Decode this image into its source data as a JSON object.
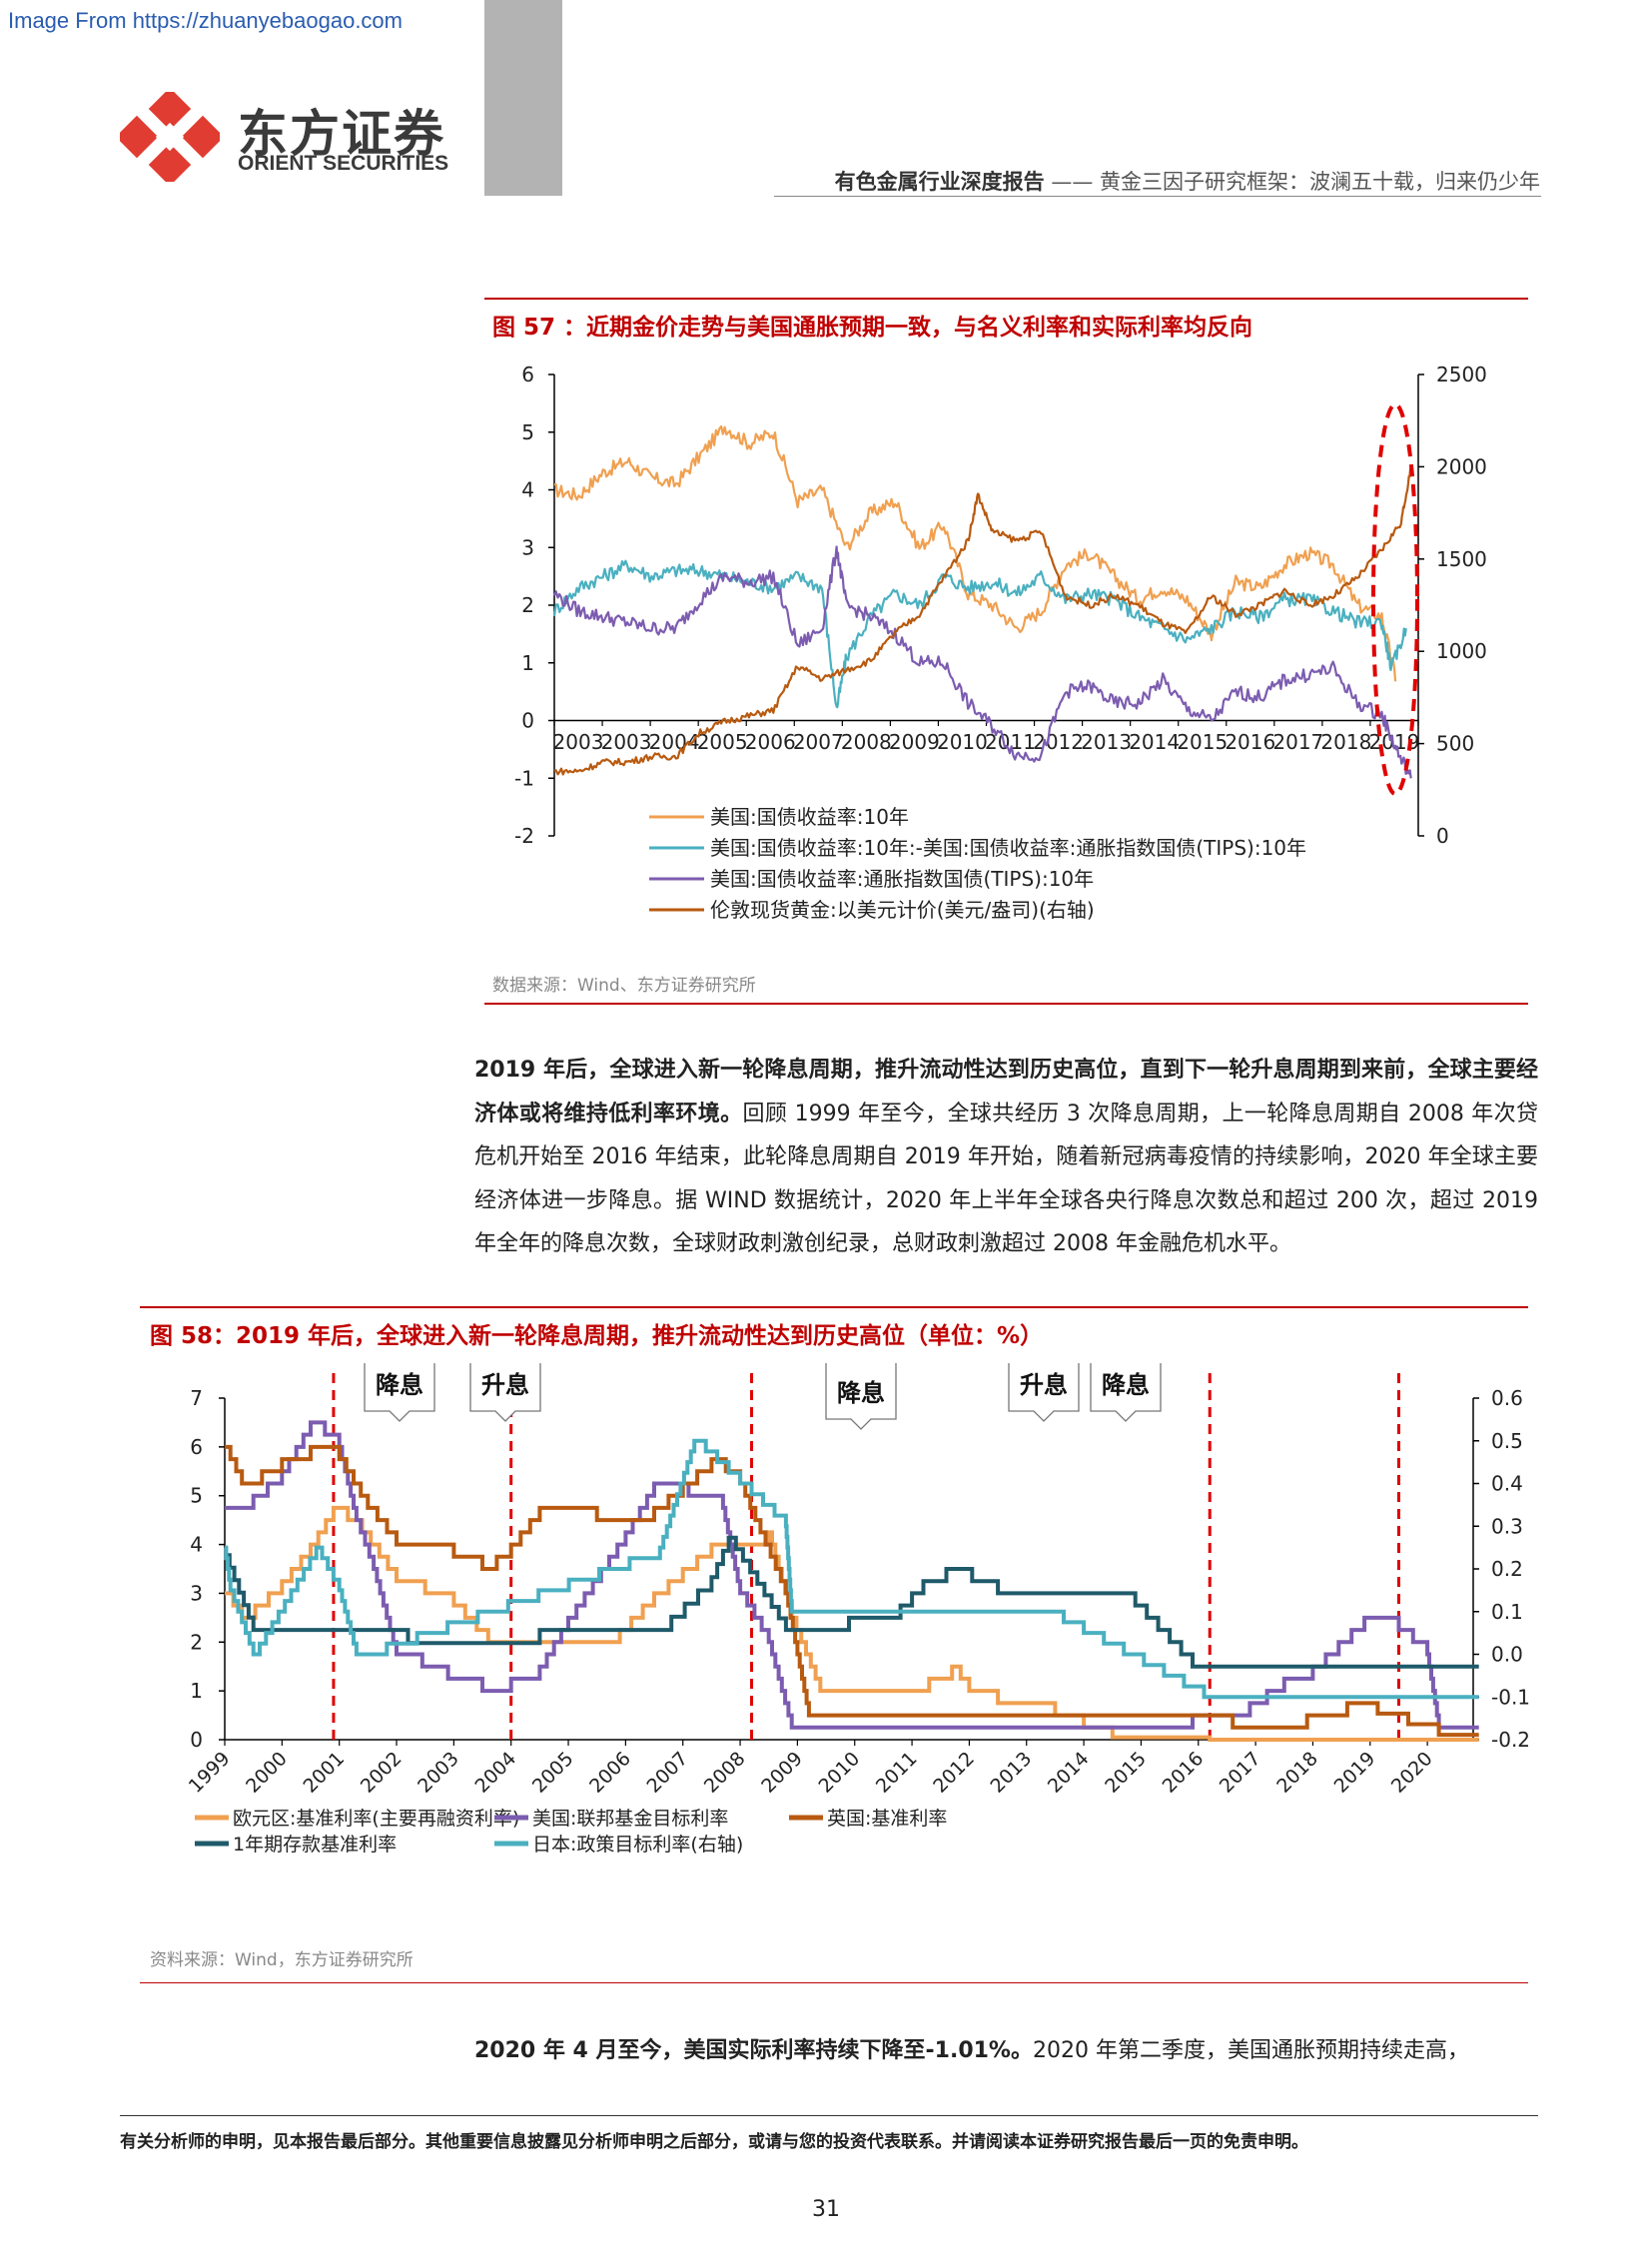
{
  "watermark": "Image From https://zhuanyebaogao.com",
  "logo": {
    "cn": "东方证券",
    "en": "ORIENT SECURITIES",
    "color": "#e03c31"
  },
  "header": {
    "report_type": "有色金属行业深度报告",
    "separator": "——",
    "title": "黄金三因子研究框架：波澜五十载，归来仍少年"
  },
  "figure57": {
    "title": "图 57 ：近期金价走势与美国通胀预期一致，与名义利率和实际利率均反向",
    "source": "数据来源：Wind、东方证券研究所"
  },
  "paragraph1": {
    "bold": "2019 年后，全球进入新一轮降息周期，推升流动性达到历史高位，直到下一轮升息周期到来前，全球主要经济体或将维持低利率环境。",
    "text": "回顾 1999 年至今，全球共经历 3 次降息周期，上一轮降息周期自 2008 年次贷危机开始至 2016 年结束，此轮降息周期自 2019 年开始，随着新冠病毒疫情的持续影响，2020 年全球主要经济体进一步降息。据 WIND 数据统计，2020 年上半年全球各央行降息次数总和超过 200 次，超过 2019 年全年的降息次数，全球财政刺激创纪录，总财政刺激超过 2008 年金融危机水平。"
  },
  "figure58": {
    "title": "图 58：2019 年后，全球进入新一轮降息周期，推升流动性达到历史高位（单位：%）",
    "source": "资料来源：Wind，东方证券研究所"
  },
  "paragraph2": {
    "bold": "2020 年 4 月至今，美国实际利率持续下降至-1.01%。",
    "text": "2020 年第二季度，美国通胀预期持续走高，"
  },
  "footer": {
    "note": "有关分析师的申明，见本报告最后部分。其他重要信息披露见分析师申明之后部分，或请与您的投资代表联系。并请阅读本证券研究报告最后一页的免责申明。",
    "page": "31"
  },
  "chart_data": [
    {
      "type": "line",
      "title": "近期金价走势与美国通胀预期一致，与名义利率和实际利率均反向",
      "x_ticks": [
        "2003",
        "2003",
        "2004",
        "2005",
        "2006",
        "2007",
        "2008",
        "2009",
        "2010",
        "2011",
        "2012",
        "2013",
        "2014",
        "2015",
        "2016",
        "2017",
        "2018",
        "2019",
        ""
      ],
      "ylim_left": [
        -2,
        6
      ],
      "y_ticks_left": [
        "6",
        "5",
        "4",
        "3",
        "2",
        "1",
        "0",
        "-1",
        "-2"
      ],
      "ylim_right": [
        0,
        2500
      ],
      "y_ticks_right": [
        "2500",
        "2000",
        "1500",
        "1000",
        "500",
        "0"
      ],
      "grid": false,
      "legend_position": "bottom",
      "annotation": "red dashed ellipse highlighting 2020",
      "series": [
        {
          "name": "美国:国债收益率:10年",
          "color": "#f0a050",
          "axis": "left",
          "x": [
            2003.0,
            2003.5,
            2004.0,
            2004.5,
            2005.0,
            2005.5,
            2006.0,
            2006.5,
            2007.0,
            2007.5,
            2008.0,
            2008.5,
            2009.0,
            2009.5,
            2010.0,
            2010.5,
            2011.0,
            2011.5,
            2012.0,
            2012.5,
            2013.0,
            2013.5,
            2014.0,
            2014.5,
            2015.0,
            2015.5,
            2016.0,
            2016.5,
            2017.0,
            2017.5,
            2018.0,
            2018.5,
            2019.0,
            2019.5,
            2020.0,
            2020.3
          ],
          "values": [
            4.0,
            3.9,
            4.3,
            4.5,
            4.2,
            4.1,
            4.6,
            5.1,
            4.8,
            5.0,
            3.8,
            4.0,
            3.0,
            3.6,
            3.8,
            3.0,
            3.4,
            2.2,
            2.0,
            1.6,
            1.9,
            2.7,
            2.9,
            2.5,
            2.1,
            2.3,
            2.1,
            1.5,
            2.4,
            2.3,
            2.7,
            2.9,
            2.7,
            2.0,
            1.8,
            0.7
          ]
        },
        {
          "name": "美国:国债收益率:10年:-美国:国债收益率:通胀指数国债(TIPS):10年",
          "color": "#4ab0c0",
          "axis": "left",
          "x": [
            2003.0,
            2003.5,
            2004.0,
            2004.5,
            2005.0,
            2005.5,
            2006.0,
            2006.5,
            2007.0,
            2007.5,
            2008.0,
            2008.5,
            2008.8,
            2009.0,
            2009.5,
            2010.0,
            2010.5,
            2011.0,
            2011.5,
            2012.0,
            2012.5,
            2013.0,
            2013.5,
            2014.0,
            2014.5,
            2015.0,
            2015.5,
            2016.0,
            2016.5,
            2017.0,
            2017.5,
            2018.0,
            2018.5,
            2019.0,
            2019.5,
            2020.0,
            2020.2,
            2020.5
          ],
          "values": [
            1.9,
            2.3,
            2.5,
            2.7,
            2.5,
            2.6,
            2.6,
            2.5,
            2.4,
            2.3,
            2.5,
            2.3,
            0.2,
            1.1,
            1.8,
            2.2,
            2.0,
            2.5,
            2.3,
            2.4,
            2.2,
            2.5,
            2.1,
            2.2,
            2.1,
            1.8,
            1.6,
            1.4,
            1.6,
            1.9,
            1.8,
            2.1,
            2.1,
            1.9,
            1.7,
            1.7,
            0.9,
            1.6
          ]
        },
        {
          "name": "美国:国债收益率:通胀指数国债(TIPS):10年",
          "color": "#7c5cb0",
          "axis": "left",
          "x": [
            2003.0,
            2003.5,
            2004.0,
            2004.5,
            2005.0,
            2005.5,
            2006.0,
            2006.5,
            2007.0,
            2007.5,
            2008.0,
            2008.5,
            2008.8,
            2009.0,
            2009.5,
            2010.0,
            2010.5,
            2011.0,
            2011.5,
            2012.0,
            2012.5,
            2013.0,
            2013.5,
            2014.0,
            2014.5,
            2015.0,
            2015.5,
            2016.0,
            2016.5,
            2017.0,
            2017.5,
            2018.0,
            2018.5,
            2019.0,
            2019.5,
            2020.0,
            2020.3,
            2020.6
          ],
          "values": [
            2.2,
            1.9,
            1.8,
            1.7,
            1.6,
            1.6,
            2.1,
            2.5,
            2.4,
            2.5,
            1.3,
            1.6,
            3.0,
            2.0,
            1.8,
            1.5,
            1.0,
            1.0,
            0.3,
            -0.1,
            -0.6,
            -0.6,
            0.5,
            0.6,
            0.3,
            0.3,
            0.7,
            0.2,
            0.0,
            0.5,
            0.4,
            0.7,
            0.8,
            0.9,
            0.3,
            0.1,
            -0.5,
            -1.0
          ]
        },
        {
          "name": "伦敦现货黄金:以美元计价(美元/盎司)(右轴)",
          "color": "#b85a10",
          "axis": "right",
          "x": [
            2003.0,
            2003.5,
            2004.0,
            2004.5,
            2005.0,
            2005.5,
            2006.0,
            2006.5,
            2007.0,
            2007.5,
            2008.0,
            2008.5,
            2009.0,
            2009.5,
            2010.0,
            2010.5,
            2011.0,
            2011.5,
            2011.7,
            2012.0,
            2012.5,
            2013.0,
            2013.5,
            2014.0,
            2014.5,
            2015.0,
            2015.5,
            2016.0,
            2016.5,
            2017.0,
            2017.5,
            2018.0,
            2018.5,
            2019.0,
            2019.5,
            2020.0,
            2020.4,
            2020.6
          ],
          "values": [
            350,
            350,
            400,
            400,
            430,
            430,
            560,
            620,
            650,
            680,
            920,
            850,
            900,
            950,
            1100,
            1200,
            1400,
            1600,
            1850,
            1650,
            1600,
            1650,
            1300,
            1250,
            1300,
            1250,
            1150,
            1100,
            1300,
            1200,
            1250,
            1330,
            1250,
            1300,
            1400,
            1550,
            1700,
            2000
          ]
        }
      ]
    },
    {
      "type": "line",
      "title": "2019 年后，全球进入新一轮降息周期，推升流动性达到历史高位（单位：%）",
      "categories": [
        "1999",
        "2000",
        "2001",
        "2002",
        "2003",
        "2004",
        "2005",
        "2006",
        "2007",
        "2008",
        "2009",
        "2010",
        "2011",
        "2012",
        "2013",
        "2014",
        "2015",
        "2016",
        "2017",
        "2018",
        "2019",
        "2020"
      ],
      "ylim_left": [
        0,
        7
      ],
      "y_ticks_left": [
        "7",
        "6",
        "5",
        "4",
        "3",
        "2",
        "1",
        "0"
      ],
      "ylim_right": [
        -0.2,
        0.6
      ],
      "y_ticks_right": [
        "0.6",
        "0.5",
        "0.4",
        "0.3",
        "0.2",
        "0.1",
        "0.0",
        "-0.1",
        "-0.2"
      ],
      "grid": false,
      "legend_position": "bottom",
      "annotations": [
        "降息",
        "升息",
        "降息",
        "升息",
        "降息"
      ],
      "vertical_markers_x": [
        2000.9,
        2004.0,
        2008.2,
        2016.2,
        2019.5
      ],
      "series": [
        {
          "name": "欧元区:基准利率(主要再融资利率)",
          "color": "#f0a050",
          "axis": "left",
          "x": [
            1999.0,
            1999.3,
            2000.0,
            2000.5,
            2000.9,
            2001.4,
            2002.0,
            2003.0,
            2003.6,
            2005.9,
            2006.5,
            2007.0,
            2007.5,
            2008.5,
            2008.9,
            2009.4,
            2011.3,
            2011.7,
            2012.0,
            2012.5,
            2013.5,
            2014.0,
            2014.5,
            2016.2,
            2020.9
          ],
          "values": [
            3.0,
            2.5,
            3.25,
            4.0,
            4.75,
            4.25,
            3.25,
            2.75,
            2.0,
            2.25,
            3.0,
            3.5,
            4.0,
            4.25,
            2.5,
            1.0,
            1.25,
            1.5,
            1.0,
            0.75,
            0.5,
            0.25,
            0.05,
            0.0,
            0.0
          ]
        },
        {
          "name": "美国:联邦基金目标利率",
          "color": "#7c5cb0",
          "axis": "left",
          "x": [
            1999.0,
            1999.5,
            2000.0,
            2000.5,
            2001.0,
            2001.3,
            2001.6,
            2002.0,
            2002.9,
            2003.5,
            2004.5,
            2005.0,
            2006.0,
            2006.5,
            2007.7,
            2008.0,
            2008.5,
            2008.9,
            2015.9,
            2016.9,
            2017.5,
            2018.0,
            2018.9,
            2019.5,
            2020.0,
            2020.2,
            2020.9
          ],
          "values": [
            4.75,
            5.0,
            5.5,
            6.5,
            6.0,
            4.5,
            3.5,
            1.75,
            1.25,
            1.0,
            1.5,
            2.5,
            4.25,
            5.25,
            4.75,
            3.0,
            2.0,
            0.25,
            0.5,
            0.75,
            1.25,
            1.5,
            2.5,
            2.25,
            1.75,
            0.25,
            0.25
          ]
        },
        {
          "name": "英国:基准利率",
          "color": "#b85a10",
          "axis": "left",
          "x": [
            1999.0,
            1999.3,
            2000.0,
            2000.5,
            2001.0,
            2001.5,
            2002.0,
            2003.0,
            2003.5,
            2004.0,
            2004.5,
            2005.5,
            2006.5,
            2007.0,
            2007.5,
            2008.0,
            2008.8,
            2009.2,
            2016.6,
            2017.9,
            2018.6,
            2020.2,
            2020.9
          ],
          "values": [
            6.0,
            5.25,
            5.75,
            6.0,
            5.75,
            4.75,
            4.0,
            3.75,
            3.5,
            4.0,
            4.75,
            4.5,
            4.75,
            5.25,
            5.75,
            5.25,
            3.0,
            0.5,
            0.25,
            0.5,
            0.75,
            0.1,
            0.1
          ]
        },
        {
          "name": "1年期存款基准利率",
          "color": "#1f5a6a",
          "axis": "left",
          "x": [
            1999.0,
            1999.5,
            2002.2,
            2006.8,
            2007.5,
            2007.8,
            2008.8,
            2009.0,
            2010.8,
            2011.2,
            2011.6,
            2012.5,
            2014.9,
            2015.3,
            2015.9,
            2020.9
          ],
          "values": [
            3.78,
            2.25,
            1.98,
            2.52,
            3.33,
            4.14,
            2.25,
            2.25,
            2.75,
            3.25,
            3.5,
            3.0,
            2.75,
            2.25,
            1.5,
            1.5
          ]
        },
        {
          "name": "日本:政策目标利率(右轴)",
          "color": "#4ab0c0",
          "axis": "right",
          "x": [
            1999.0,
            1999.1,
            1999.5,
            2000.6,
            2001.0,
            2001.3,
            2006.6,
            2007.2,
            2008.8,
            2008.9,
            2010.9,
            2013.3,
            2016.1,
            2020.9
          ],
          "values": [
            0.25,
            0.15,
            0.0,
            0.25,
            0.15,
            0.0,
            0.25,
            0.5,
            0.3,
            0.1,
            0.1,
            0.1,
            -0.1,
            -0.1
          ]
        }
      ]
    }
  ]
}
